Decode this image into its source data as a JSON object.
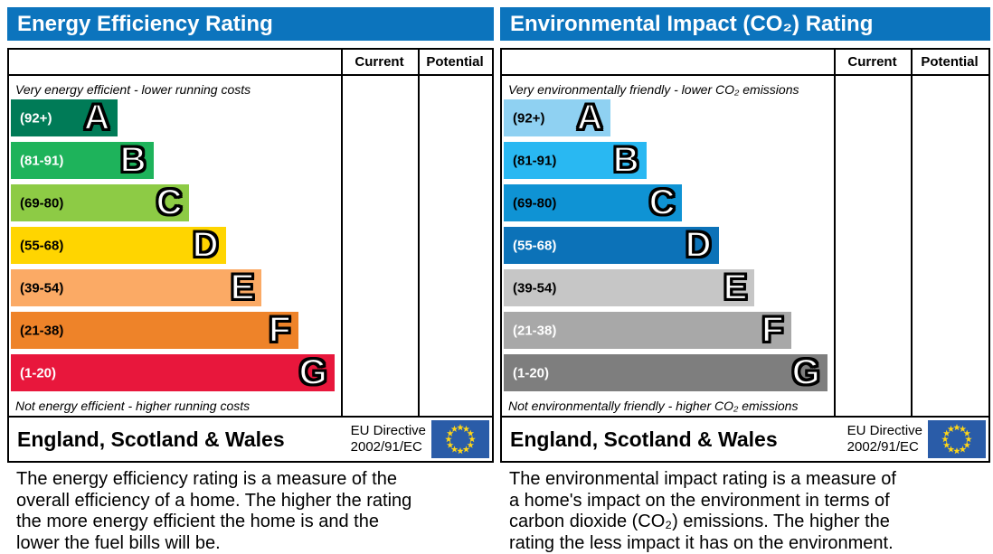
{
  "colors": {
    "header_bg": "#0c74bd",
    "border": "#000000",
    "letter_fill": "#ffffff",
    "letter_outline": "#000000",
    "flag_bg": "#2a5ca8",
    "flag_star": "#ffd617"
  },
  "panels": [
    {
      "title": "Energy Efficiency Rating",
      "table": {
        "current_label": "Current",
        "potential_label": "Potential"
      },
      "top_caption": "Very energy efficient - lower running costs",
      "bottom_caption": "Not energy efficient - higher running costs",
      "bands": [
        {
          "range": "(92+)",
          "letter": "A",
          "color": "#007b57",
          "range_color": "#ffffff",
          "width_pct": 32.2
        },
        {
          "range": "(81-91)",
          "letter": "B",
          "color": "#1eb35b",
          "range_color": "#ffffff",
          "width_pct": 43.2
        },
        {
          "range": "(69-80)",
          "letter": "C",
          "color": "#8dcb45",
          "range_color": "#000000",
          "width_pct": 54.1
        },
        {
          "range": "(55-68)",
          "letter": "D",
          "color": "#ffd500",
          "range_color": "#000000",
          "width_pct": 65.1
        },
        {
          "range": "(39-54)",
          "letter": "E",
          "color": "#fbaa65",
          "range_color": "#000000",
          "width_pct": 76.0
        },
        {
          "range": "(21-38)",
          "letter": "F",
          "color": "#ee8329",
          "range_color": "#000000",
          "width_pct": 87.0
        },
        {
          "range": "(1-20)",
          "letter": "G",
          "color": "#e8173c",
          "range_color": "#ffffff",
          "width_pct": 98.0
        }
      ],
      "footer": {
        "region": "England, Scotland & Wales",
        "directive_line1": "EU Directive",
        "directive_line2": "2002/91/EC"
      },
      "description_lines": [
        "The energy efficiency rating is a measure of the",
        "overall efficiency of a home. The higher the rating",
        "the more energy efficient the home is and the",
        "lower the fuel bills will be."
      ]
    },
    {
      "title": "Environmental Impact (CO₂) Rating",
      "table": {
        "current_label": "Current",
        "potential_label": "Potential"
      },
      "top_caption": "Very environmentally friendly - lower CO₂ emissions",
      "bottom_caption": "Not environmentally friendly - higher CO₂ emissions",
      "bands": [
        {
          "range": "(92+)",
          "letter": "A",
          "color": "#8fd1f2",
          "range_color": "#000000",
          "width_pct": 32.2
        },
        {
          "range": "(81-91)",
          "letter": "B",
          "color": "#29b8f2",
          "range_color": "#000000",
          "width_pct": 43.2
        },
        {
          "range": "(69-80)",
          "letter": "C",
          "color": "#0f93d4",
          "range_color": "#000000",
          "width_pct": 54.1
        },
        {
          "range": "(55-68)",
          "letter": "D",
          "color": "#0c72b8",
          "range_color": "#ffffff",
          "width_pct": 65.1
        },
        {
          "range": "(39-54)",
          "letter": "E",
          "color": "#c6c6c6",
          "range_color": "#000000",
          "width_pct": 76.0
        },
        {
          "range": "(21-38)",
          "letter": "F",
          "color": "#a8a8a8",
          "range_color": "#ffffff",
          "width_pct": 87.0
        },
        {
          "range": "(1-20)",
          "letter": "G",
          "color": "#7e7e7e",
          "range_color": "#ffffff",
          "width_pct": 98.0
        }
      ],
      "footer": {
        "region": "England, Scotland & Wales",
        "directive_line1": "EU Directive",
        "directive_line2": "2002/91/EC"
      },
      "description_lines": [
        "The environmental impact rating is a measure of",
        "a home's impact on the environment in terms of",
        "carbon dioxide (CO₂) emissions. The higher the",
        "rating the less impact it has on the environment."
      ]
    }
  ],
  "chart_data": [
    {
      "type": "bar",
      "orientation": "horizontal",
      "title": "Energy Efficiency Rating",
      "columns": [
        "Current",
        "Potential"
      ],
      "categories": [
        "A",
        "B",
        "C",
        "D",
        "E",
        "F",
        "G"
      ],
      "band_ranges": [
        "92+",
        "81-91",
        "69-80",
        "55-68",
        "39-54",
        "21-38",
        "1-20"
      ],
      "values": [
        32.2,
        43.2,
        54.1,
        65.1,
        76.0,
        87.0,
        98.0
      ],
      "value_unit": "percent of rating column width",
      "bar_colors": [
        "#007b57",
        "#1eb35b",
        "#8dcb45",
        "#ffd500",
        "#fbaa65",
        "#ee8329",
        "#e8173c"
      ],
      "current": null,
      "potential": null,
      "top_annotation": "Very energy efficient - lower running costs",
      "bottom_annotation": "Not energy efficient - higher running costs"
    },
    {
      "type": "bar",
      "orientation": "horizontal",
      "title": "Environmental Impact (CO₂) Rating",
      "columns": [
        "Current",
        "Potential"
      ],
      "categories": [
        "A",
        "B",
        "C",
        "D",
        "E",
        "F",
        "G"
      ],
      "band_ranges": [
        "92+",
        "81-91",
        "69-80",
        "55-68",
        "39-54",
        "21-38",
        "1-20"
      ],
      "values": [
        32.2,
        43.2,
        54.1,
        65.1,
        76.0,
        87.0,
        98.0
      ],
      "value_unit": "percent of rating column width",
      "bar_colors": [
        "#8fd1f2",
        "#29b8f2",
        "#0f93d4",
        "#0c72b8",
        "#c6c6c6",
        "#a8a8a8",
        "#7e7e7e"
      ],
      "current": null,
      "potential": null,
      "top_annotation": "Very environmentally friendly - lower CO₂ emissions",
      "bottom_annotation": "Not environmentally friendly - higher CO₂ emissions"
    }
  ]
}
